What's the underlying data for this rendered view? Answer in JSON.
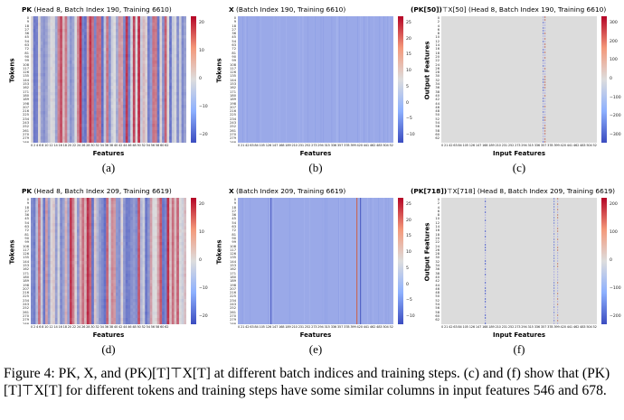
{
  "panels": [
    {
      "id": "a",
      "title_bold": "PK",
      "title_rest": " (Head 8, Batch Index 190, Training 6610)",
      "ylabel": "Tokens",
      "xlabel": "Features",
      "caption": "(a)",
      "type": "pk",
      "yticks": "0\n9\n18\n27\n36\n45\n54\n63\n72\n81\n90\n99\n108\n117\n126\n135\n144\n153\n162\n171\n180\n189\n198\n207\n216\n225\n234\n243\n252\n261\n270\n279\n288\n297\n306\n315\n324",
      "xticks": "0 2 4 6 8 10 12 14 16 18 20 22 24 26 28 30 32 34 36 38 40 42 44 46 48 50 52 54 56 58 60 62",
      "cticks": [
        "20",
        "10",
        "0",
        "−10",
        "−20"
      ]
    },
    {
      "id": "b",
      "title_bold": "X",
      "title_rest": " (Batch Index 190, Training 6610)",
      "ylabel": "Tokens",
      "xlabel": "Features",
      "caption": "(b)",
      "type": "x",
      "yticks": "0\n9\n18\n27\n36\n45\n54\n63\n72\n81\n90\n99\n108\n117\n126\n135\n144\n153\n162\n171\n180\n189\n198\n207\n216\n225\n234\n243\n252\n261\n270\n279\n288\n297\n306\n315\n324",
      "xticks": "0 21 42 63 84 105 126 147 168 189 210 231 252 273 294 315 336 357 378 399 420 441 462 483 504 525 546 567 588 609 630 651 672 693 714 735 756",
      "cticks": [
        "25",
        "20",
        "15",
        "10",
        "5",
        "0",
        "−5",
        "−10"
      ]
    },
    {
      "id": "c",
      "title_bold": "(PK[50])",
      "title_rest": "⊤X[50] (Head 8, Batch Index 190, Training 6610)",
      "ylabel": "Output Features",
      "xlabel": "Input Features",
      "caption": "(c)",
      "type": "pkx",
      "yticks": "0\n2\n4\n6\n8\n10\n12\n14\n16\n18\n20\n22\n24\n26\n28\n30\n32\n34\n36\n38\n40\n42\n44\n46\n48\n50\n52\n54\n56\n58\n60\n62",
      "xticks": "0 21 42 63 84 105 126 147 168 189 210 231 252 273 294 315 336 357 378 399 420 441 462 483 504 525 546 567 588 609 630 651 672 693 714 735 756",
      "cticks": [
        "300",
        "200",
        "100",
        "0",
        "−100",
        "−200",
        "−300"
      ]
    },
    {
      "id": "d",
      "title_bold": "PK",
      "title_rest": " (Head 8, Batch Index 209, Training 6619)",
      "ylabel": "Tokens",
      "xlabel": "Features",
      "caption": "(d)",
      "type": "pk",
      "yticks": "0\n9\n18\n27\n36\n45\n54\n63\n72\n81\n90\n99\n108\n117\n126\n135\n144\n153\n162\n171\n180\n189\n198\n207\n216\n225\n234\n243\n252\n261\n270\n279\n288\n297\n306\n315\n324",
      "xticks": "0 2 4 6 8 10 12 14 16 18 20 22 24 26 28 30 32 34 36 38 40 42 44 46 48 50 52 54 56 58 60 62",
      "cticks": [
        "20",
        "10",
        "0",
        "−10",
        "−20"
      ]
    },
    {
      "id": "e",
      "title_bold": "X",
      "title_rest": " (Batch Index 209, Training 6619)",
      "ylabel": "Tokens",
      "xlabel": "Features",
      "caption": "(e)",
      "type": "x2",
      "yticks": "0\n9\n18\n27\n36\n45\n54\n63\n72\n81\n90\n99\n108\n117\n126\n135\n144\n153\n162\n171\n180\n189\n198\n207\n216\n225\n234\n243\n252\n261\n270\n279\n288\n297\n306\n315\n324",
      "xticks": "0 21 42 63 84 105 126 147 168 189 210 231 252 273 294 315 336 357 378 399 420 441 462 483 504 525 546 567 588 609 630 651 672 693 714 735 756",
      "cticks": [
        "25",
        "20",
        "15",
        "10",
        "5",
        "0",
        "−5",
        "−10"
      ]
    },
    {
      "id": "f",
      "title_bold": "(PK[718])",
      "title_rest": "⊤X[718] (Head 8, Batch Index 209, Training 6619)",
      "ylabel": "Output Features",
      "xlabel": "Input Features",
      "caption": "(f)",
      "type": "pkx2",
      "yticks": "0\n2\n4\n6\n8\n10\n12\n14\n16\n18\n20\n22\n24\n26\n28\n30\n32\n34\n36\n38\n40\n42\n44\n46\n48\n50\n52\n54\n56\n58\n60\n62",
      "xticks": "0 21 42 63 84 105 126 147 168 189 210 231 252 273 294 315 336 357 378 399 420 441 462 483 504 525 546 567 588 609 630 651 672 693 714 735 756",
      "cticks": [
        "200",
        "100",
        "0",
        "−100",
        "−200"
      ]
    }
  ],
  "figure_caption": {
    "label": "Figure 4:",
    "text": "PK, X, and (PK)[T]⊤X[T] at different batch indices and training steps. (c) and (f) show that (PK)[T]⊤X[T] for different tokens and training steps have some similar columns in input features 546 and 678."
  },
  "colors": {
    "cold": "#3b4cc0",
    "neutral": "#dddddd",
    "hot": "#b40426"
  }
}
